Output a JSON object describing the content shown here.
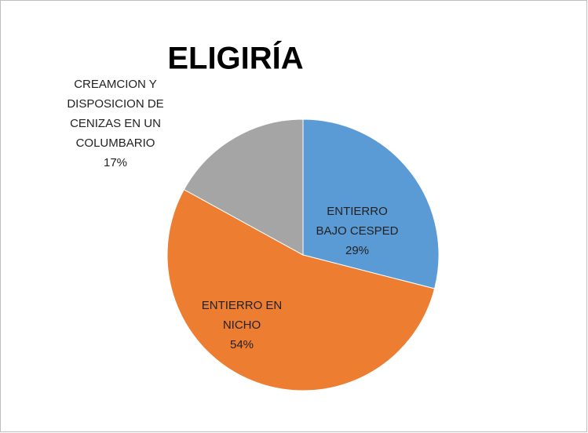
{
  "chart_data": {
    "type": "pie",
    "title": "ELIGIRÍA",
    "categories": [
      "ENTIERRO BAJO CESPED",
      "ENTIERRO EN NICHO",
      "CREAMCION Y DISPOSICION DE CENIZAS EN UN COLUMBARIO"
    ],
    "values": [
      29,
      54,
      17
    ],
    "value_labels": [
      "29%",
      "54%",
      "17%"
    ],
    "colors": [
      "#5b9bd5",
      "#ed7d31",
      "#a5a5a5"
    ]
  }
}
